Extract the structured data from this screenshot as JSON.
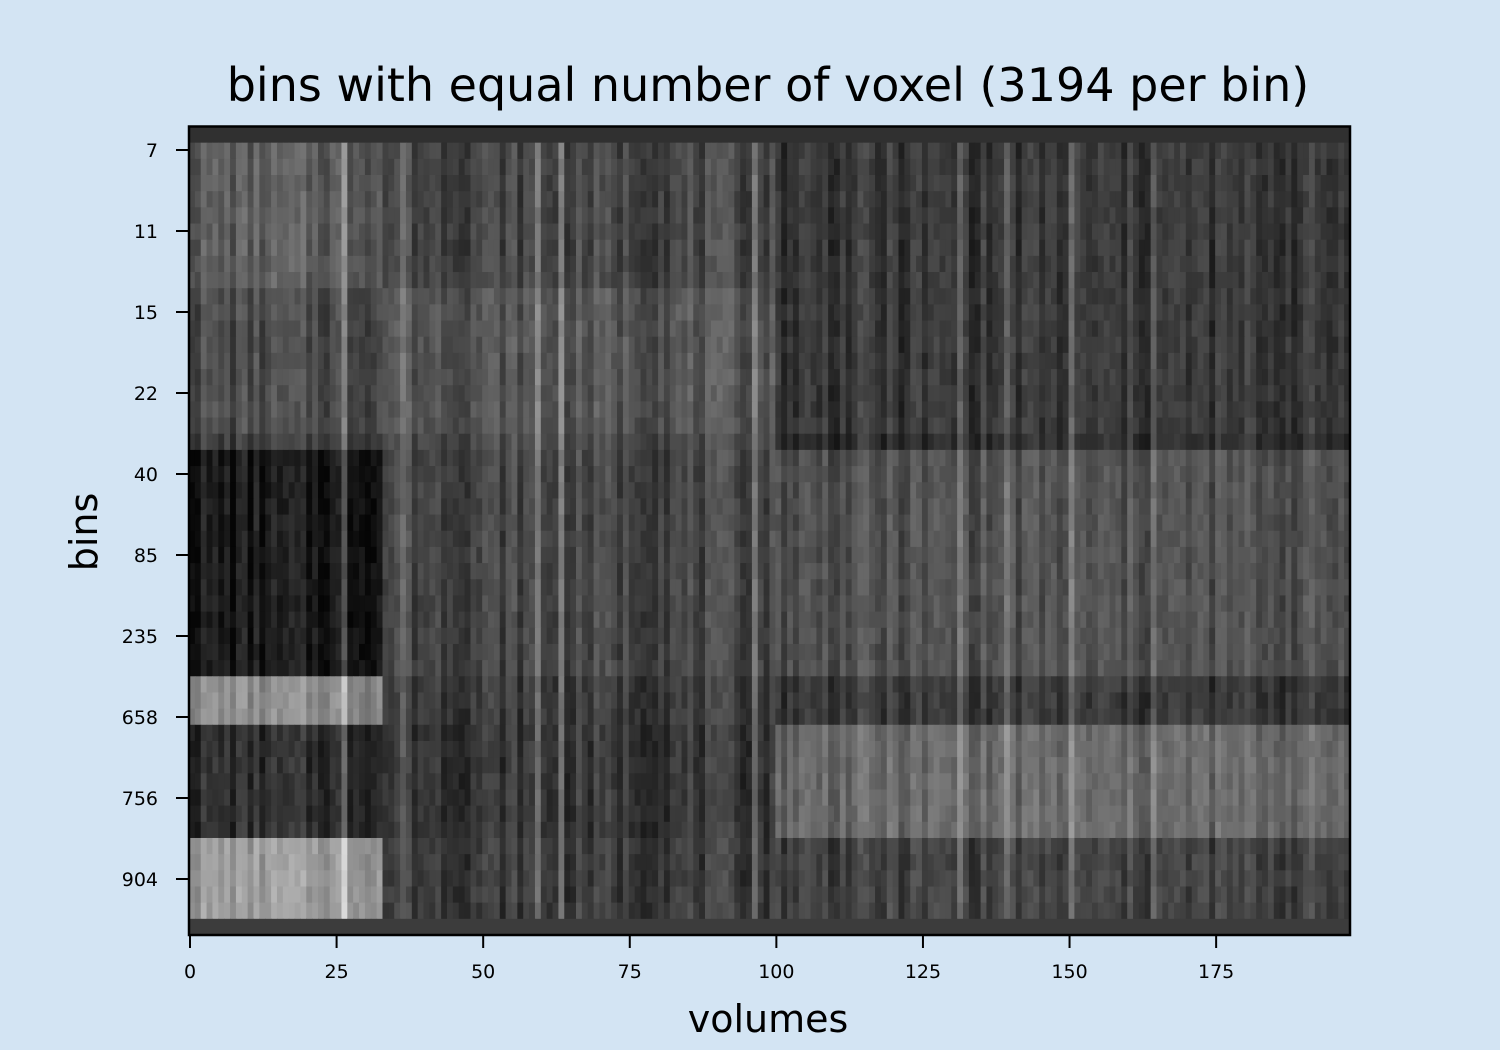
{
  "chart_data": {
    "type": "heatmap",
    "title": "bins with equal number of voxel (3194 per bin)",
    "xlabel": "volumes",
    "ylabel": "bins",
    "colormap": "gray",
    "x_ticks": [
      0,
      25,
      50,
      75,
      100,
      125,
      150,
      175
    ],
    "y_tick_labels": [
      "7",
      "11",
      "15",
      "22",
      "40",
      "85",
      "235",
      "658",
      "756",
      "904"
    ],
    "xlim": [
      0,
      198
    ],
    "n_volumes": 198,
    "n_rows": 50,
    "grid": false,
    "colors": {
      "background": "#d3e4f3",
      "axes_frame": "#000000"
    }
  }
}
